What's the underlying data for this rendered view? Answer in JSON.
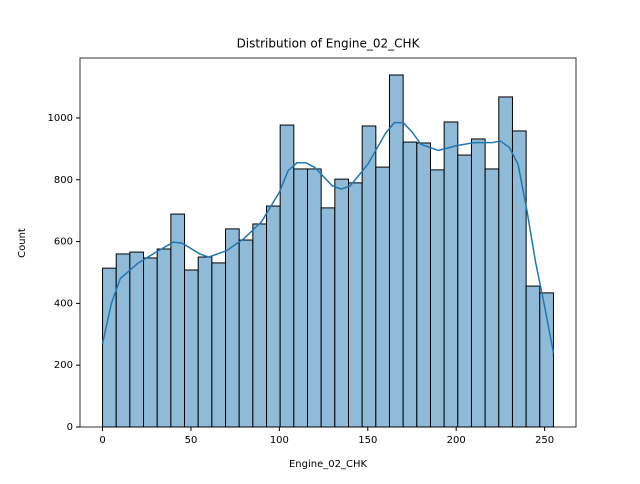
{
  "chart_data": {
    "type": "histogram",
    "title": "Distribution of Engine_02_CHK",
    "xlabel": "Engine_02_CHK",
    "ylabel": "Count",
    "bins": [
      0,
      7.73,
      15.45,
      23.18,
      30.91,
      38.64,
      46.36,
      54.09,
      61.82,
      69.55,
      77.27,
      85,
      92.73,
      100.45,
      108.18,
      115.91,
      123.64,
      131.36,
      139.09,
      146.82,
      154.55,
      162.27,
      170,
      177.73,
      185.45,
      193.18,
      200.91,
      208.64,
      216.36,
      224.09,
      231.82,
      239.55,
      247.27,
      255
    ],
    "counts": [
      514,
      560,
      566,
      547,
      576,
      689,
      508,
      550,
      531,
      641,
      605,
      657,
      715,
      977,
      835,
      835,
      709,
      802,
      790,
      974,
      841,
      1139,
      922,
      919,
      832,
      987,
      880,
      932,
      835,
      1068,
      958,
      456,
      434
    ],
    "color": "#8fbbd9",
    "edgecolor": "#000000",
    "kde": {
      "color": "#1f77b4",
      "x": [
        0,
        5,
        10,
        20,
        30,
        40,
        45,
        55,
        60,
        70,
        80,
        90,
        100,
        105,
        110,
        115,
        120,
        130,
        135,
        140,
        150,
        160,
        165,
        170,
        175,
        180,
        190,
        200,
        210,
        220,
        225,
        230,
        235,
        240,
        245,
        250,
        255
      ],
      "values": [
        270,
        400,
        480,
        530,
        565,
        598,
        595,
        560,
        550,
        570,
        610,
        665,
        760,
        830,
        855,
        855,
        840,
        780,
        770,
        780,
        850,
        950,
        985,
        985,
        955,
        915,
        895,
        910,
        920,
        920,
        925,
        905,
        850,
        700,
        530,
        390,
        240
      ]
    },
    "xlim": [
      -12.75,
      267.75
    ],
    "ylim": [
      0,
      1194
    ],
    "xticks": [
      0,
      50,
      100,
      150,
      200,
      250
    ],
    "yticks": [
      0,
      200,
      400,
      600,
      800,
      1000
    ]
  }
}
